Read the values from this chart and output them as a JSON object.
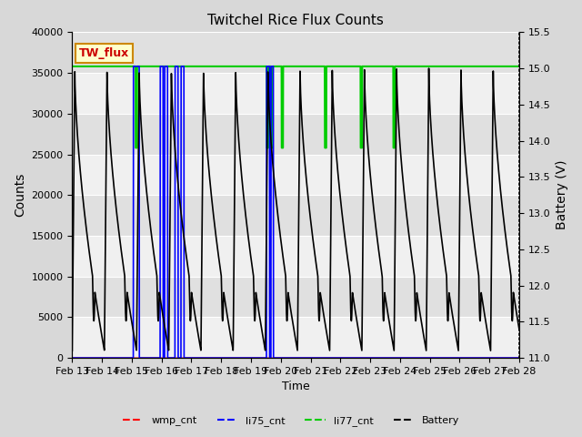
{
  "title": "Twitchel Rice Flux Counts",
  "xlabel": "Time",
  "ylabel_left": "Counts",
  "ylabel_right": "Battery (V)",
  "xlim_start": 13,
  "xlim_end": 28,
  "ylim_left": [
    0,
    40000
  ],
  "ylim_right": [
    11.0,
    15.5
  ],
  "yticks_left": [
    0,
    5000,
    10000,
    15000,
    20000,
    25000,
    30000,
    35000,
    40000
  ],
  "yticks_right": [
    11.0,
    11.5,
    12.0,
    12.5,
    13.0,
    13.5,
    14.0,
    14.5,
    15.0,
    15.5
  ],
  "xtick_labels": [
    "Feb 13",
    "Feb 14",
    "Feb 15",
    "Feb 16",
    "Feb 17",
    "Feb 18",
    "Feb 19",
    "Feb 20",
    "Feb 21",
    "Feb 22",
    "Feb 23",
    "Feb 24",
    "Feb 25",
    "Feb 26",
    "Feb 27",
    "Feb 28"
  ],
  "xtick_positions": [
    13,
    14,
    15,
    16,
    17,
    18,
    19,
    20,
    21,
    22,
    23,
    24,
    25,
    26,
    27,
    28
  ],
  "fig_bg_color": "#d8d8d8",
  "plot_bg_color": "#e8e8e8",
  "band_light": "#f0f0f0",
  "band_dark": "#e0e0e0",
  "grid_color": "#ffffff",
  "label_box_color": "#ffffcc",
  "label_box_edge": "#cc8800",
  "label_text": "TW_flux",
  "label_text_color": "#cc0000",
  "wmp_color": "#ff0000",
  "li75_color": "#0000ff",
  "li77_color": "#00cc00",
  "battery_color": "#000000",
  "li77_level": 35800,
  "batt_vmin": 11.0,
  "batt_vmax": 15.5,
  "counts_min": 0,
  "counts_max": 40000,
  "cycle_period": 1.08,
  "batt_high": 15.0,
  "batt_low": 11.1,
  "li75_spikes": [
    [
      15.05,
      15.25
    ],
    [
      15.95,
      16.05
    ],
    [
      16.1,
      16.2
    ],
    [
      16.45,
      16.55
    ],
    [
      16.65,
      16.75
    ],
    [
      19.52,
      19.62
    ],
    [
      19.67,
      19.75
    ]
  ],
  "li77_dip_days": [
    15.15,
    19.55,
    19.7,
    20.05,
    21.5,
    22.7,
    23.8
  ],
  "n_points": 5000
}
